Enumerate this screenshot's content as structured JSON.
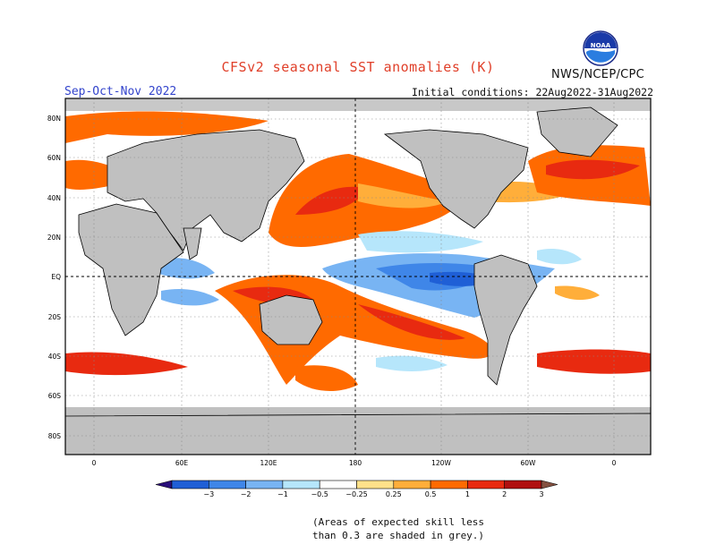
{
  "header": {
    "title": "CFSv2 seasonal SST anomalies (K)",
    "agency": "NWS/NCEP/CPC",
    "season": "Sep-Oct-Nov 2022",
    "initial_conditions": "Initial conditions: 22Aug2022-31Aug2022",
    "logo_text": "NOAA"
  },
  "map": {
    "lat_labels": [
      "80N",
      "60N",
      "40N",
      "20N",
      "EQ",
      "20S",
      "40S",
      "60S",
      "80S"
    ],
    "lon_labels": [
      "0",
      "60E",
      "120E",
      "180",
      "120W",
      "60W",
      "0"
    ]
  },
  "legend": {
    "ticks": [
      "−3",
      "−2",
      "−1",
      "−0.5",
      "−0.25",
      "0.25",
      "0.5",
      "1",
      "2",
      "3"
    ],
    "colors": [
      "#2a0f7a",
      "#1f5fd6",
      "#3f86e8",
      "#78b4f3",
      "#b6e6fb",
      "#ffffff",
      "#ffe18a",
      "#ffae3a",
      "#ff6a00",
      "#e82a10",
      "#b01010",
      "#845040"
    ]
  },
  "note": {
    "line1": "(Areas of expected skill less",
    "line2": "than 0.3 are shaded in grey.)"
  }
}
